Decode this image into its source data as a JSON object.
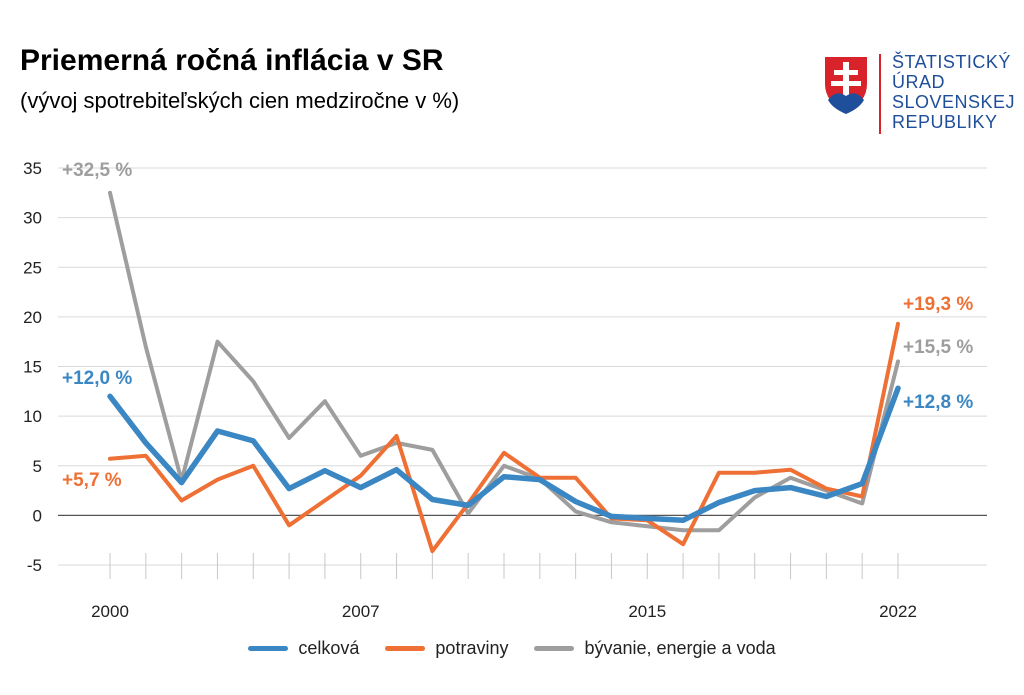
{
  "header": {
    "title": "Priemerná ročná inflácia v SR",
    "subtitle": "(vývoj spotrebiteľských cien medziročne v %)"
  },
  "logo": {
    "line1": "ŠTATISTICKÝ",
    "line2": "ÚRAD",
    "line3": "SLOVENSKEJ",
    "line4": "REPUBLIKY",
    "icon": "slovak-coat-of-arms-icon"
  },
  "colors": {
    "celkova": "#3a87c4",
    "potraviny": "#ee7034",
    "byvanie": "#9e9e9e",
    "grid": "#d9d9d9"
  },
  "chart_data": {
    "type": "line",
    "x": [
      2000,
      2001,
      2002,
      2003,
      2004,
      2005,
      2006,
      2007,
      2008,
      2009,
      2010,
      2011,
      2012,
      2013,
      2014,
      2015,
      2016,
      2017,
      2018,
      2019,
      2020,
      2021,
      2022
    ],
    "xticks": [
      "2000",
      "2007",
      "2015",
      "2022"
    ],
    "yticks": [
      "35",
      "30",
      "25",
      "20",
      "15",
      "10",
      "5",
      "0",
      "-5"
    ],
    "ylim": [
      -5,
      35
    ],
    "grid": true,
    "legend_position": "bottom",
    "series": [
      {
        "name": "celková",
        "key": "celkova",
        "values": [
          12.0,
          7.3,
          3.3,
          8.5,
          7.5,
          2.7,
          4.5,
          2.8,
          4.6,
          1.6,
          1.0,
          3.9,
          3.6,
          1.4,
          -0.1,
          -0.3,
          -0.5,
          1.3,
          2.5,
          2.8,
          1.9,
          3.2,
          12.8
        ]
      },
      {
        "name": "potraviny",
        "key": "potraviny",
        "values": [
          5.7,
          6.0,
          1.5,
          3.6,
          5.0,
          -1.0,
          1.5,
          4.0,
          8.0,
          -3.6,
          1.2,
          6.3,
          3.8,
          3.8,
          -0.3,
          -0.5,
          -2.9,
          4.3,
          4.3,
          4.6,
          2.7,
          1.9,
          19.3
        ]
      },
      {
        "name": "bývanie, energie a voda",
        "key": "byvanie",
        "values": [
          32.5,
          17.0,
          3.5,
          17.5,
          13.5,
          7.8,
          11.5,
          6.0,
          7.3,
          6.6,
          0.2,
          5.0,
          3.7,
          0.4,
          -0.7,
          -1.1,
          -1.5,
          -1.5,
          1.8,
          3.8,
          2.5,
          1.2,
          15.5
        ]
      }
    ],
    "annotations": [
      {
        "text": "+32,5 %",
        "series": "byvanie"
      },
      {
        "text": "+12,0 %",
        "series": "celkova"
      },
      {
        "text": "+5,7 %",
        "series": "potraviny"
      },
      {
        "text": "+19,3 %",
        "series": "potraviny"
      },
      {
        "text": "+15,5 %",
        "series": "byvanie"
      },
      {
        "text": "+12,8 %",
        "series": "celkova"
      }
    ]
  }
}
